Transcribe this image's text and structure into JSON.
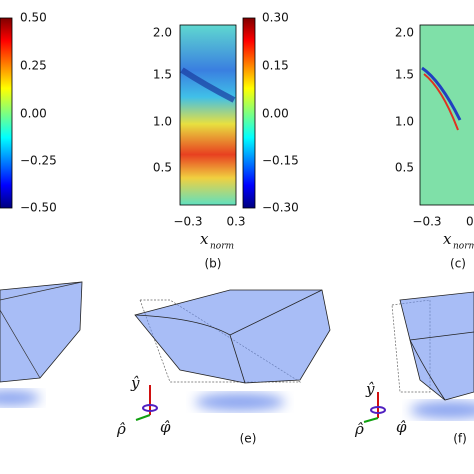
{
  "panels": [
    {
      "colorbar_ticks": [
        "0.50",
        "0.25",
        "0.00",
        "−0.25",
        "−0.50"
      ]
    },
    {
      "label": "(b)",
      "y_ticks": [
        "2.0",
        "1.5",
        "1.0",
        "0.5"
      ],
      "x_ticks": [
        "−0.3",
        "0.3"
      ],
      "x_label": "x",
      "x_label_sub": "norm",
      "colorbar_ticks": [
        "0.30",
        "0.15",
        "0.00",
        "−0.15",
        "−0.30"
      ]
    },
    {
      "label": "(c)",
      "y_ticks": [
        "2.0",
        "1.5",
        "1.0",
        "0.5"
      ],
      "x_ticks": [
        "−0.3",
        "0"
      ],
      "x_label": "x",
      "x_label_sub": "norm"
    },
    {
      "label": "(e)",
      "axes": [
        "ŷ",
        "ρ̂",
        "φ̂"
      ]
    },
    {
      "label": "(f)",
      "axes": [
        "ŷ",
        "ρ̂",
        "φ̂"
      ]
    }
  ]
}
